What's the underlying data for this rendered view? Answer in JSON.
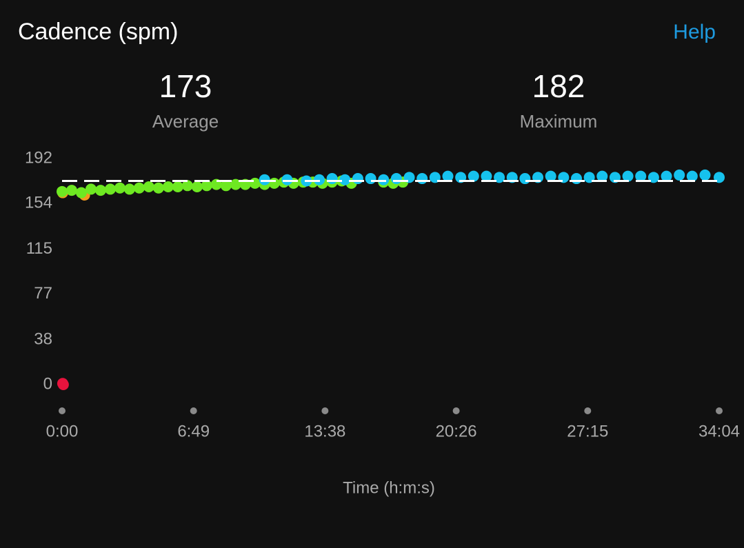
{
  "header": {
    "title": "Cadence (spm)",
    "help": "Help"
  },
  "stats": [
    {
      "value": 173,
      "label": "Average"
    },
    {
      "value": 182,
      "label": "Maximum"
    }
  ],
  "chart_data": {
    "type": "scatter",
    "x_label": "Time (h:m:s)",
    "xlim": [
      0,
      2044
    ],
    "ylim": [
      0,
      192
    ],
    "xticks": [
      {
        "value": 0,
        "label": "0:00"
      },
      {
        "value": 409,
        "label": "6:49"
      },
      {
        "value": 818,
        "label": "13:38"
      },
      {
        "value": 1226,
        "label": "20:26"
      },
      {
        "value": 1635,
        "label": "27:15"
      },
      {
        "value": 2044,
        "label": "34:04"
      }
    ],
    "yticks": [
      0,
      38,
      77,
      115,
      154,
      192
    ],
    "series": [
      {
        "color": "#e8133d",
        "x": [
          2,
          4
        ],
        "values": [
          1,
          0
        ]
      },
      {
        "color": "#f29a1e",
        "x": [
          2,
          70
        ],
        "values": [
          163,
          161
        ]
      },
      {
        "color": "#6ee822",
        "x": [
          0,
          30,
          60,
          90,
          120,
          150,
          180,
          210,
          240,
          270,
          300,
          330,
          360,
          390,
          420,
          450,
          480,
          510,
          540,
          570,
          600,
          630,
          660,
          690,
          720,
          750,
          780,
          810,
          840,
          870,
          900,
          1000,
          1030,
          1060
        ],
        "values": [
          164,
          165,
          163,
          166,
          165,
          166,
          167,
          166,
          167,
          168,
          167,
          168,
          168,
          169,
          168,
          169,
          170,
          169,
          170,
          170,
          171,
          170,
          171,
          172,
          171,
          172,
          172,
          171,
          172,
          173,
          171,
          172,
          171,
          172
        ]
      },
      {
        "color": "#16c2ee",
        "x": [
          630,
          700,
          760,
          800,
          840,
          880,
          920,
          960,
          1000,
          1040,
          1080,
          1120,
          1160,
          1200,
          1240,
          1280,
          1320,
          1360,
          1400,
          1440,
          1480,
          1520,
          1560,
          1600,
          1640,
          1680,
          1720,
          1760,
          1800,
          1840,
          1880,
          1920,
          1960,
          2000,
          2044
        ],
        "values": [
          174,
          174,
          173,
          174,
          175,
          174,
          175,
          175,
          174,
          175,
          176,
          175,
          176,
          177,
          176,
          177,
          177,
          176,
          176,
          175,
          176,
          177,
          176,
          175,
          176,
          177,
          176,
          177,
          177,
          176,
          177,
          178,
          177,
          178,
          176
        ]
      }
    ]
  }
}
